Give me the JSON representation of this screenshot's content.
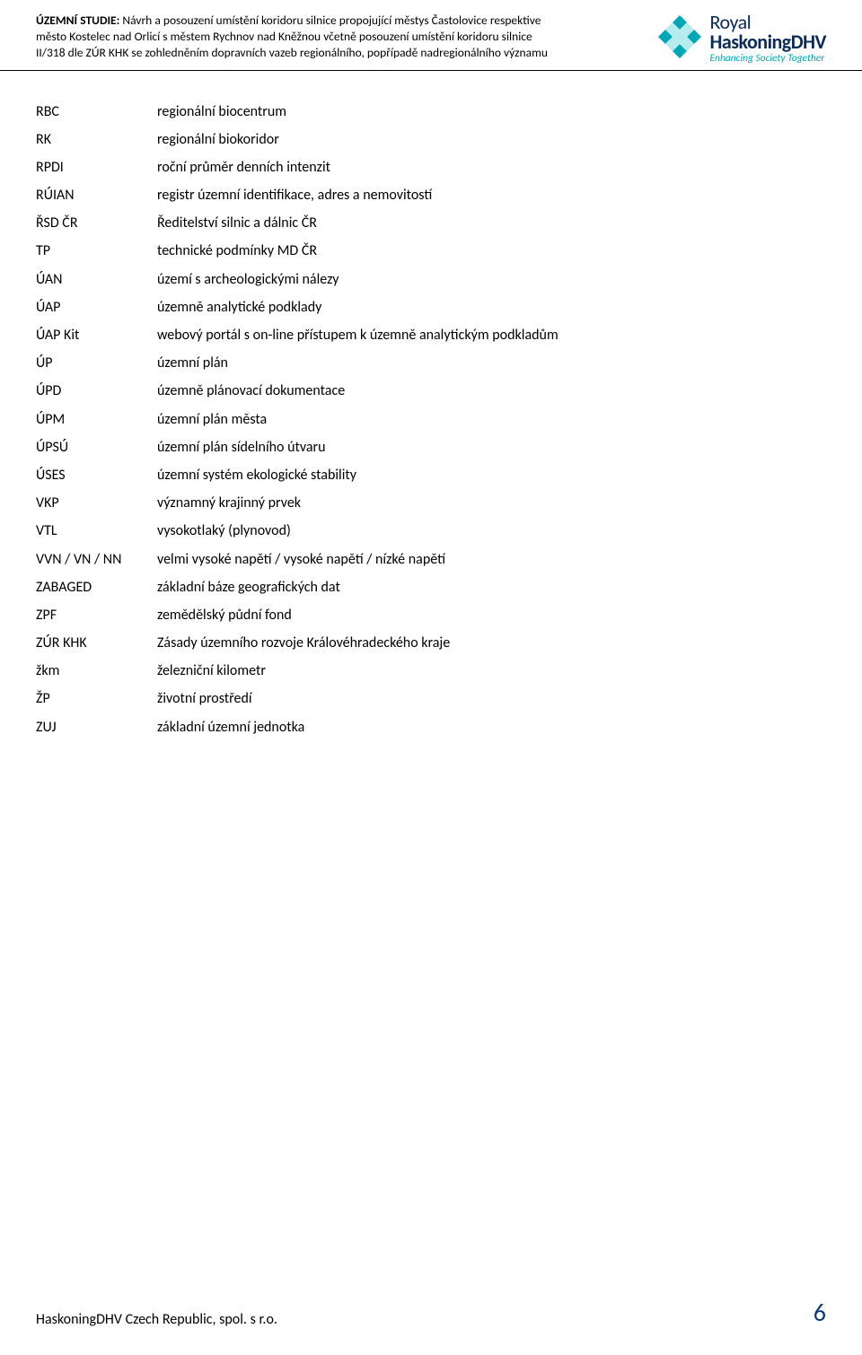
{
  "header": {
    "line1_bold": "ÚZEMNÍ STUDIE: ",
    "line1_rest": "Návrh a posouzení umístění koridoru silnice propojující městys Častolovice respektive",
    "line2": "město Kostelec nad Orlicí s městem Rychnov nad Kněžnou včetně posouzení umístění koridoru silnice",
    "line3": "II/318 dle ZÚR KHK se zohledněním dopravních vazeb regionálního, popřípadě nadregionálního významu"
  },
  "logo": {
    "line1_a": "Royal",
    "line2": "HaskoningDHV",
    "tagline": "Enhancing Society Together",
    "checker_color": "#00a7b5",
    "title_color": "#0a2b5a"
  },
  "abbreviations": [
    {
      "abbr": "RBC",
      "def": "regionální biocentrum"
    },
    {
      "abbr": "RK",
      "def": "regionální biokoridor"
    },
    {
      "abbr": "RPDI",
      "def": "roční průměr denních intenzit"
    },
    {
      "abbr": "RÚIAN",
      "def": "registr územní identifikace, adres a nemovitostí"
    },
    {
      "abbr": "ŘSD ČR",
      "def": "Ředitelství silnic a dálnic ČR"
    },
    {
      "abbr": "TP",
      "def": "technické podmínky MD ČR"
    },
    {
      "abbr": "ÚAN",
      "def": "území s archeologickými nálezy"
    },
    {
      "abbr": "ÚAP",
      "def": "územně analytické podklady"
    },
    {
      "abbr": "ÚAP Kit",
      "def": "webový portál s on-line přístupem k územně analytickým podkladům"
    },
    {
      "abbr": "ÚP",
      "def": "územní plán"
    },
    {
      "abbr": "ÚPD",
      "def": "územně plánovací dokumentace"
    },
    {
      "abbr": "ÚPM",
      "def": "územní plán města"
    },
    {
      "abbr": "ÚPSÚ",
      "def": "územní plán sídelního útvaru"
    },
    {
      "abbr": "ÚSES",
      "def": "územní systém ekologické stability"
    },
    {
      "abbr": "VKP",
      "def": "významný krajinný prvek"
    },
    {
      "abbr": "VTL",
      "def": "vysokotlaký (plynovod)"
    },
    {
      "abbr": "VVN / VN / NN",
      "def": "velmi vysoké napětí / vysoké napětí / nízké napětí"
    },
    {
      "abbr": "ZABAGED",
      "def": "základní báze geografických dat"
    },
    {
      "abbr": "ZPF",
      "def": "zemědělský půdní fond"
    },
    {
      "abbr": "ZÚR KHK",
      "def": "Zásady územního rozvoje Královéhradeckého kraje"
    },
    {
      "abbr": "žkm",
      "def": "železniční kilometr"
    },
    {
      "abbr": "ŽP",
      "def": "životní prostředí"
    },
    {
      "abbr": "ZUJ",
      "def": "základní územní jednotka"
    }
  ],
  "footer": {
    "left": "HaskoningDHV Czech Republic, spol. s r.o.",
    "page": "6"
  }
}
